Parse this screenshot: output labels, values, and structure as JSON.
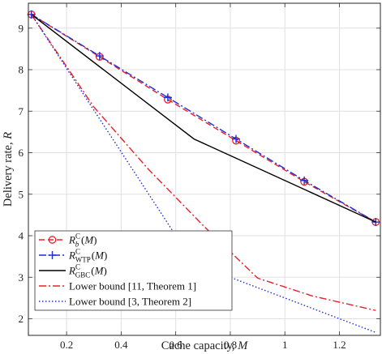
{
  "chart_data": {
    "type": "line",
    "xlabel": "Cache capacity, ",
    "xlabel_var": "M",
    "ylabel": "Delivery rate, ",
    "ylabel_var": "R",
    "xlim": [
      0.06,
      1.35
    ],
    "ylim": [
      1.6,
      9.6
    ],
    "xticks": [
      0.2,
      0.4,
      0.6,
      0.8,
      1.0,
      1.2
    ],
    "xtick_labels": [
      "0.2",
      "0.4",
      "0.6",
      "0.8",
      "1",
      "1.2"
    ],
    "yticks": [
      2,
      3,
      4,
      5,
      6,
      7,
      8,
      9
    ],
    "ytick_labels": [
      "2",
      "3",
      "4",
      "5",
      "6",
      "7",
      "8",
      "9"
    ],
    "grid": true,
    "legend_position": "bottom-left",
    "series": [
      {
        "name": "R_b^C(M)",
        "legend_main": "R",
        "legend_sub": "b",
        "legend_sup": "C",
        "legend_suffix": "(M)",
        "color": "#e8202a",
        "line_style": "dashed",
        "marker": "circle",
        "x": [
          0.071,
          0.321,
          0.571,
          0.821,
          1.071,
          1.333
        ],
        "y": [
          9.33,
          8.31,
          7.28,
          6.29,
          5.3,
          4.33
        ]
      },
      {
        "name": "R_WTP^C(M)",
        "legend_main": "R",
        "legend_sub": "WTP",
        "legend_sup": "C",
        "legend_suffix": "(M)",
        "color": "#1f2cd6",
        "line_style": "dashdot",
        "marker": "plus",
        "x": [
          0.071,
          0.321,
          0.571,
          0.821,
          1.071,
          1.333
        ],
        "y": [
          9.33,
          8.33,
          7.33,
          6.33,
          5.33,
          4.33
        ]
      },
      {
        "name": "R_GBC^C(M)",
        "legend_main": "R",
        "legend_sub": "GBC",
        "legend_sup": "C",
        "legend_suffix": "(M)",
        "color": "#000000",
        "line_style": "solid",
        "marker": "none",
        "x": [
          0.071,
          0.667,
          1.333
        ],
        "y": [
          9.33,
          6.33,
          4.33
        ]
      },
      {
        "name": "Lower bound [11, Theorem 1]",
        "color": "#e8202a",
        "line_style": "dashdot",
        "marker": "none",
        "x": [
          0.071,
          0.3,
          0.5,
          0.7,
          0.9,
          1.1,
          1.333
        ],
        "y": [
          9.33,
          7.1,
          5.6,
          4.25,
          2.98,
          2.55,
          2.2
        ]
      },
      {
        "name": "Lower bound [3, Theorem 2]",
        "color": "#1f2cd6",
        "line_style": "dotted",
        "marker": "none",
        "x": [
          0.071,
          0.667,
          1.333
        ],
        "y": [
          9.33,
          3.33,
          1.67
        ]
      }
    ]
  }
}
